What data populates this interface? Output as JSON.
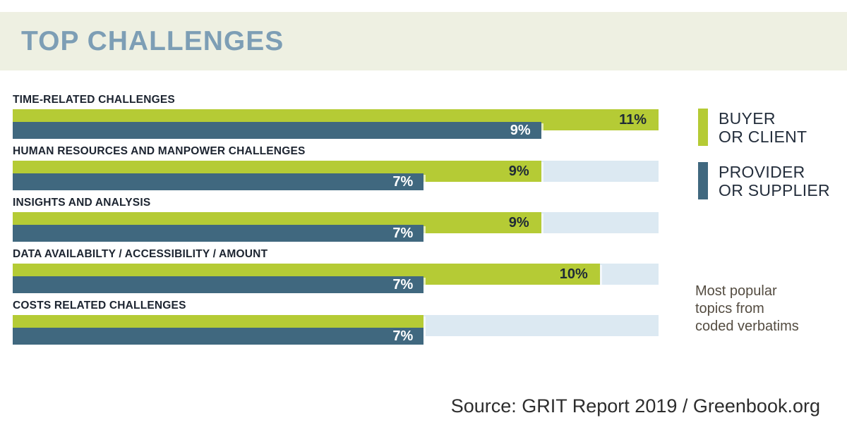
{
  "header": {
    "title": "TOP CHALLENGES"
  },
  "rows": [
    {
      "category": "TIME-RELATED CHALLENGES",
      "buyer": {
        "value": 11,
        "label": "11%"
      },
      "provider": {
        "value": 9,
        "label": "9%"
      }
    },
    {
      "category": "HUMAN RESOURCES AND MANPOWER CHALLENGES",
      "buyer": {
        "value": 9,
        "label": "9%"
      },
      "provider": {
        "value": 7,
        "label": "7%"
      }
    },
    {
      "category": "INSIGHTS AND ANALYSIS",
      "buyer": {
        "value": 9,
        "label": "9%"
      },
      "provider": {
        "value": 7,
        "label": "7%"
      }
    },
    {
      "category": "DATA AVAILABILTY / ACCESSIBILITY / AMOUNT",
      "buyer": {
        "value": 10,
        "label": "10%"
      },
      "provider": {
        "value": 7,
        "label": "7%"
      }
    },
    {
      "category": "COSTS RELATED CHALLENGES",
      "buyer": {
        "value": 7,
        "label": ""
      },
      "provider": {
        "value": 7,
        "label": "7%"
      }
    }
  ],
  "legend": {
    "items": [
      {
        "line1": "BUYER",
        "line2": "OR CLIENT",
        "color": "#b5cb35"
      },
      {
        "line1": "PROVIDER",
        "line2": "OR SUPPLIER",
        "color": "#40687f"
      }
    ]
  },
  "note": {
    "line1": "Most popular",
    "line2": "topics from",
    "line3": "coded verbatims"
  },
  "source": {
    "text": "Source: GRIT Report 2019 / Greenbook.org"
  },
  "chart_data": {
    "type": "bar",
    "orientation": "horizontal",
    "title": "TOP CHALLENGES",
    "categories": [
      "TIME-RELATED CHALLENGES",
      "HUMAN RESOURCES AND MANPOWER CHALLENGES",
      "INSIGHTS AND ANALYSIS",
      "DATA AVAILABILTY / ACCESSIBILITY / AMOUNT",
      "COSTS RELATED CHALLENGES"
    ],
    "series": [
      {
        "name": "Buyer or Client",
        "color": "#b5cb35",
        "values": [
          11,
          9,
          9,
          10,
          7
        ],
        "labels": [
          "11%",
          "9%",
          "9%",
          "10%",
          ""
        ]
      },
      {
        "name": "Provider or Supplier",
        "color": "#40687f",
        "values": [
          9,
          7,
          7,
          7,
          7
        ],
        "labels": [
          "9%",
          "7%",
          "7%",
          "7%",
          "7%"
        ]
      }
    ],
    "xlim": [
      0,
      11
    ],
    "unit": "%",
    "grid": false,
    "legend_position": "right",
    "track_color": "#dce9f2",
    "title_color": "#7d9eb5",
    "title_band_color": "#eef0e2",
    "note": "Most popular topics from coded verbatims",
    "source": "Source: GRIT Report 2019 / Greenbook.org"
  }
}
